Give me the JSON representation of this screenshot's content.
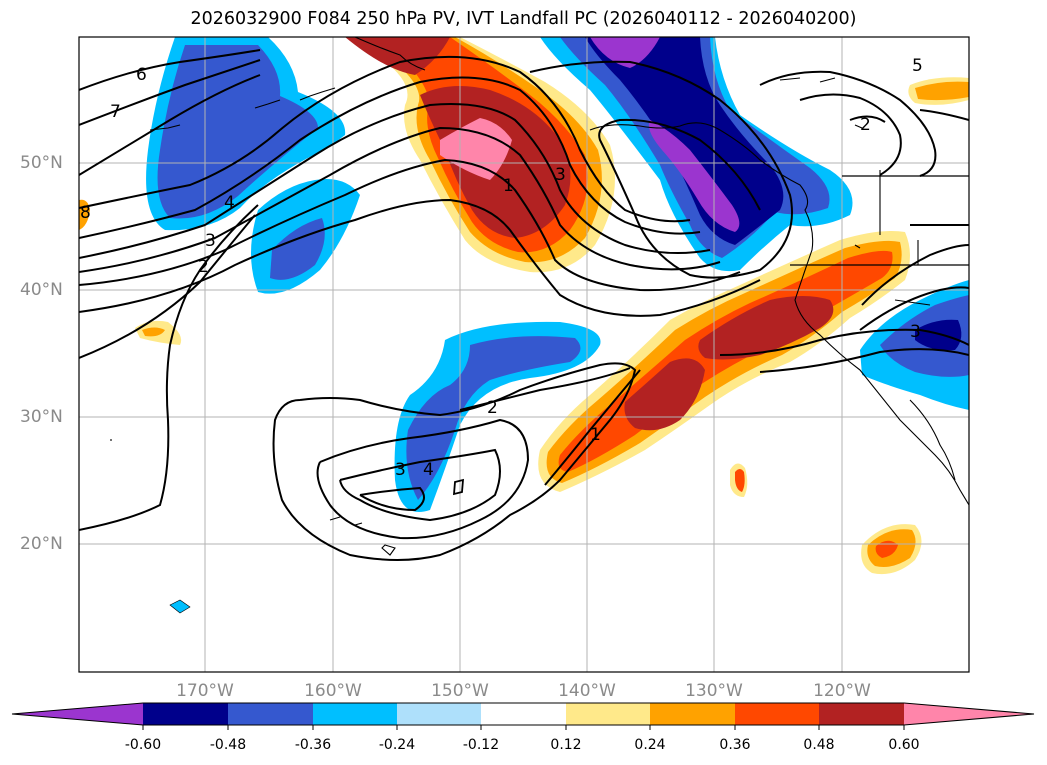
{
  "title": "2026032900 F084 250 hPa PV, IVT Landfall PC (2026040112 - 2026040200)",
  "lat_labels": [
    "50°N",
    "40°N",
    "30°N",
    "20°N"
  ],
  "lon_labels": [
    "170°W",
    "160°W",
    "150°W",
    "140°W",
    "130°W",
    "120°W"
  ],
  "contour_labels": [
    "6",
    "7",
    "8",
    "4",
    "3",
    "2",
    "1",
    "3",
    "5",
    "2",
    "2",
    "3",
    "4",
    "1",
    "3"
  ],
  "colorbar": {
    "ticks": [
      "-0.60",
      "-0.48",
      "-0.36",
      "-0.24",
      "-0.12",
      "0.12",
      "0.24",
      "0.36",
      "0.48",
      "0.60"
    ],
    "colors": [
      "#9b35cf",
      "#00008b",
      "#3558cf",
      "#00bfff",
      "#aee0fb",
      "#ffffff",
      "#ffe98a",
      "#ffa200",
      "#ff4800",
      "#b22222",
      "#ff85aa"
    ]
  }
}
